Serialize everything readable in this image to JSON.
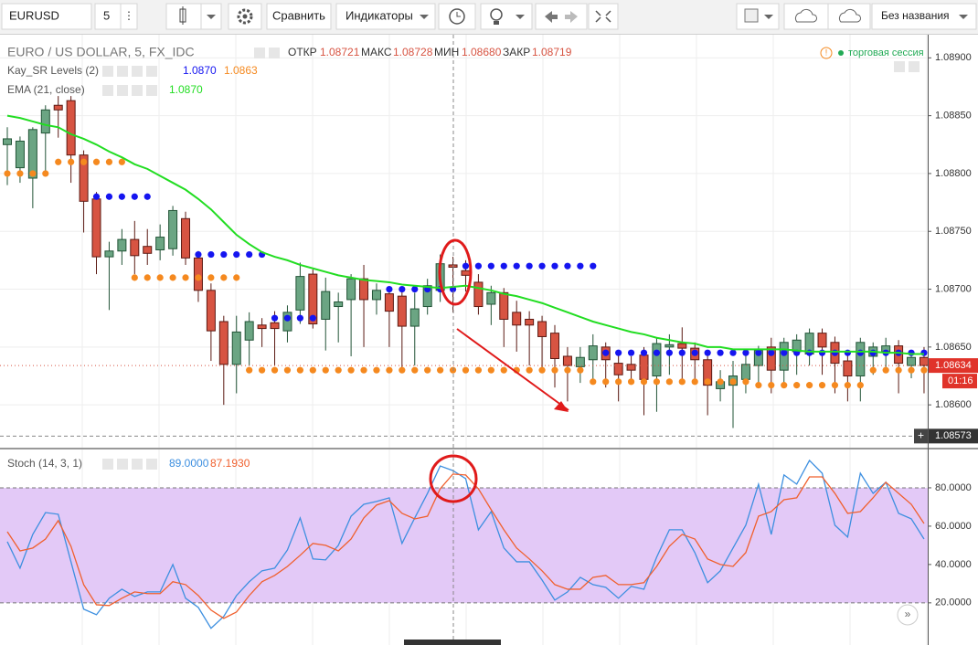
{
  "toolbar": {
    "symbol": "EURUSD",
    "interval": "5",
    "compare": "Сравнить",
    "indicators": "Индикаторы",
    "layout_name": "Без названия"
  },
  "chart_data": [
    {
      "type": "candlestick",
      "title": "EURO / US DOLLAR, 5, FX_IDC",
      "readout": {
        "labels": [
          "ОТКР",
          "МАКС",
          "МИН",
          "ЗАКР"
        ],
        "values": [
          "1.08721",
          "1.08728",
          "1.08680",
          "1.08719"
        ]
      },
      "session": "торговая сессия",
      "up_color": "#6ba583",
      "down_color": "#d75442",
      "open": [
        1.08825,
        1.08805,
        1.08796,
        1.08835,
        1.08859,
        1.08863,
        1.08816,
        1.08778,
        1.08728,
        1.08733,
        1.08743,
        1.08737,
        1.08734,
        1.08735,
        1.08761,
        1.08727,
        1.08699,
        1.08672,
        1.08635,
        1.08656,
        1.08669,
        1.08671,
        1.08664,
        1.08682,
        1.08713,
        1.08674,
        1.08685,
        1.08691,
        1.08709,
        1.08691,
        1.08696,
        1.08694,
        1.08668,
        1.08685,
        1.08699,
        1.08721,
        1.08716,
        1.08706,
        1.08687,
        1.08697,
        1.0868,
        1.08674,
        1.08672,
        1.08662,
        1.08642,
        1.08633,
        1.08639,
        1.0865,
        1.08636,
        1.08635,
        1.08643,
        1.08625,
        1.0865,
        1.08653,
        1.08649,
        1.08639,
        1.08614,
        1.08617,
        1.08622,
        1.08634,
        1.0865,
        1.0863,
        1.08646,
        1.08644,
        1.08662,
        1.08654,
        1.08638,
        1.08625,
        1.08642,
        1.08646,
        1.08651,
        1.08634,
        1.08641
      ],
      "high": [
        1.0884,
        1.08832,
        1.0884,
        1.08859,
        1.08867,
        1.08867,
        1.0882,
        1.08784,
        1.08741,
        1.08752,
        1.08759,
        1.08752,
        1.08756,
        1.08772,
        1.08767,
        1.08733,
        1.08705,
        1.08677,
        1.08677,
        1.0868,
        1.08675,
        1.08681,
        1.08686,
        1.08723,
        1.08717,
        1.0871,
        1.08697,
        1.08713,
        1.08721,
        1.08705,
        1.08701,
        1.08699,
        1.08697,
        1.08709,
        1.0873,
        1.08728,
        1.08725,
        1.08713,
        1.08703,
        1.08701,
        1.0869,
        1.08681,
        1.08677,
        1.08669,
        1.0865,
        1.0865,
        1.08661,
        1.08654,
        1.08646,
        1.08642,
        1.0865,
        1.08658,
        1.08661,
        1.08667,
        1.08654,
        1.08646,
        1.0863,
        1.08638,
        1.08646,
        1.08651,
        1.08658,
        1.08658,
        1.08661,
        1.08666,
        1.08666,
        1.08659,
        1.08646,
        1.08658,
        1.08654,
        1.08658,
        1.08656,
        1.08646,
        1.0865
      ],
      "low": [
        1.0879,
        1.08792,
        1.0877,
        1.088,
        1.08831,
        1.08792,
        1.08749,
        1.08713,
        1.08682,
        1.08721,
        1.08713,
        1.08721,
        1.08725,
        1.08729,
        1.08721,
        1.08689,
        1.08638,
        1.086,
        1.0861,
        1.08634,
        1.0865,
        1.08634,
        1.08654,
        1.0867,
        1.08666,
        1.08647,
        1.08654,
        1.08642,
        1.0865,
        1.08678,
        1.0865,
        1.08631,
        1.08634,
        1.08678,
        1.08689,
        1.0868,
        1.08698,
        1.08678,
        1.08669,
        1.0865,
        1.08646,
        1.08634,
        1.08631,
        1.08615,
        1.08603,
        1.08619,
        1.08619,
        1.08615,
        1.08603,
        1.08619,
        1.08591,
        1.08594,
        1.08626,
        1.08619,
        1.08619,
        1.08591,
        1.08603,
        1.0858,
        1.0861,
        1.08615,
        1.0861,
        1.08619,
        1.08626,
        1.08634,
        1.08626,
        1.0861,
        1.08603,
        1.08603,
        1.08626,
        1.0863,
        1.0861,
        1.08623,
        1.0861
      ],
      "close": [
        1.0883,
        1.08828,
        1.08838,
        1.08855,
        1.08855,
        1.08816,
        1.08776,
        1.08728,
        1.08733,
        1.08743,
        1.08729,
        1.08731,
        1.08745,
        1.08768,
        1.08727,
        1.08699,
        1.08664,
        1.08635,
        1.08663,
        1.08672,
        1.08666,
        1.08666,
        1.0868,
        1.08711,
        1.0867,
        1.08698,
        1.08689,
        1.08709,
        1.08691,
        1.08699,
        1.08681,
        1.08668,
        1.08683,
        1.08703,
        1.08722,
        1.08719,
        1.08712,
        1.08685,
        1.08697,
        1.08674,
        1.08669,
        1.08669,
        1.08659,
        1.0864,
        1.08634,
        1.08641,
        1.08651,
        1.08639,
        1.08626,
        1.0863,
        1.08622,
        1.08653,
        1.08652,
        1.08649,
        1.08639,
        1.08617,
        1.0862,
        1.08625,
        1.08635,
        1.08647,
        1.0863,
        1.08654,
        1.08656,
        1.08662,
        1.0865,
        1.08636,
        1.08625,
        1.08654,
        1.0865,
        1.08651,
        1.08636,
        1.08641,
        1.08634
      ],
      "indicators": [
        {
          "name": "Kay_SR Levels (2)",
          "series": [
            {
              "color": "#1515f0",
              "style": "dots",
              "readout": "1.0870",
              "values": [
                null,
                null,
                null,
                null,
                null,
                null,
                null,
                1.0878,
                1.0878,
                1.0878,
                1.0878,
                1.0878,
                null,
                null,
                null,
                1.0873,
                1.0873,
                1.0873,
                1.0873,
                1.0873,
                1.0873,
                1.08675,
                1.08675,
                1.08675,
                1.08675,
                null,
                null,
                null,
                null,
                null,
                1.087,
                1.087,
                1.087,
                1.087,
                1.087,
                1.087,
                1.0872,
                1.0872,
                1.0872,
                1.0872,
                1.0872,
                1.0872,
                1.0872,
                1.0872,
                1.0872,
                1.0872,
                1.0872,
                1.08645,
                1.08645,
                1.08645,
                1.08645,
                1.08645,
                1.08645,
                1.08645,
                1.08645,
                1.08645,
                1.08645,
                1.08645,
                1.08645,
                1.08645,
                1.08645,
                1.08645,
                1.08645,
                1.08645,
                1.08645,
                1.08645,
                1.08645,
                1.08645,
                1.08645,
                1.08645,
                1.08645,
                1.08645,
                1.08645
              ]
            },
            {
              "color": "#f5891f",
              "style": "dots",
              "readout": "1.0863",
              "values": [
                1.088,
                1.088,
                1.088,
                1.088,
                1.0881,
                1.0881,
                1.0881,
                1.0881,
                1.0881,
                1.0881,
                1.0871,
                1.0871,
                1.0871,
                1.0871,
                1.0871,
                1.0871,
                1.0871,
                1.0871,
                1.0871,
                1.0863,
                1.0863,
                1.0863,
                1.0863,
                1.0863,
                1.0863,
                1.0863,
                1.0863,
                1.0863,
                1.0863,
                1.0863,
                1.0863,
                1.0863,
                1.0863,
                1.0863,
                1.0863,
                1.0863,
                1.0863,
                1.0863,
                1.0863,
                1.0863,
                1.0863,
                1.0863,
                1.0863,
                1.0863,
                1.0863,
                1.0863,
                1.0862,
                1.0862,
                1.0862,
                1.0862,
                1.0862,
                1.0862,
                1.0862,
                1.0862,
                1.0862,
                1.0862,
                1.0862,
                1.0862,
                1.0862,
                1.08617,
                1.08617,
                1.08617,
                1.08617,
                1.08617,
                1.08617,
                1.08617,
                1.08617,
                1.08617,
                1.0863,
                1.0863,
                1.0863,
                1.0863,
                1.0863
              ]
            }
          ]
        },
        {
          "name": "EMA (21, close)",
          "series": [
            {
              "color": "#22dd22",
              "style": "line",
              "readout": "1.0870",
              "values": [
                1.0885,
                1.08848,
                1.08845,
                1.08842,
                1.0884,
                1.08834,
                1.0883,
                1.08825,
                1.08819,
                1.08814,
                1.08808,
                1.08804,
                1.08798,
                1.08792,
                1.08786,
                1.08778,
                1.08769,
                1.08758,
                1.08747,
                1.08739,
                1.08732,
                1.08728,
                1.08725,
                1.08721,
                1.08718,
                1.08715,
                1.08712,
                1.0871,
                1.08708,
                1.08707,
                1.08706,
                1.08704,
                1.08703,
                1.08702,
                1.08701,
                1.08702,
                1.08703,
                1.08701,
                1.08699,
                1.08696,
                1.08694,
                1.08691,
                1.08688,
                1.08684,
                1.0868,
                1.08676,
                1.08672,
                1.08669,
                1.08666,
                1.08663,
                1.08661,
                1.08658,
                1.08656,
                1.08654,
                1.08653,
                1.0865,
                1.0865,
                1.08648,
                1.08648,
                1.08648,
                1.08648,
                1.08648,
                1.08647,
                1.08646,
                1.08646,
                1.08646,
                1.08646,
                1.08646,
                1.08646,
                1.08645,
                1.08645,
                1.08644,
                1.08644
              ]
            }
          ]
        }
      ],
      "ylim": [
        1.08563,
        1.0892
      ],
      "yticks": [
        {
          "value": 1.086,
          "label": "1.08600"
        },
        {
          "value": 1.0865,
          "label": "1.08650"
        },
        {
          "value": 1.087,
          "label": "1.08700"
        },
        {
          "value": 1.0875,
          "label": "1.08750"
        },
        {
          "value": 1.088,
          "label": "1.08800"
        },
        {
          "value": 1.0885,
          "label": "1.08850"
        },
        {
          "value": 1.089,
          "label": "1.08900"
        }
      ],
      "grid": true,
      "last_price_label": "1.08634",
      "countdown": "01:16",
      "crosshair": {
        "value": 1.08573,
        "label": "1.08573"
      }
    },
    {
      "type": "line",
      "title": "Stoch (14, 3, 1)",
      "series": [
        {
          "color": "#3d8fe0",
          "readout": "89.0000",
          "values": [
            51.9,
            38.1,
            55.7,
            67.1,
            66.2,
            41.4,
            16.7,
            13.8,
            22.4,
            27.1,
            23.3,
            25.7,
            25.7,
            40.0,
            22.4,
            17.6,
            6.7,
            12.9,
            23.8,
            31.0,
            36.7,
            38.1,
            47.6,
            64.3,
            42.9,
            42.4,
            50.0,
            65.2,
            71.4,
            72.9,
            74.8,
            51.0,
            64.3,
            77.1,
            91.4,
            89,
            84.8,
            58.1,
            67.6,
            48.6,
            41.4,
            41.4,
            31.9,
            21.4,
            25.7,
            33.3,
            29.5,
            28.1,
            22.4,
            28.6,
            27.1,
            43.8,
            58.1,
            58.1,
            46.2,
            30.5,
            36.7,
            48.6,
            60.5,
            81.9,
            55.7,
            86.7,
            81.9,
            94.3,
            87.6,
            60.5,
            54.3,
            87.6,
            77.1,
            82.9,
            66.7,
            63.8,
            53.3
          ]
        },
        {
          "color": "#f0602e",
          "readout": "87.1930",
          "values": [
            57.1,
            47.1,
            48.6,
            53.3,
            62.9,
            49.5,
            29.5,
            19.0,
            18.6,
            22.4,
            25.7,
            24.8,
            24.8,
            31.0,
            29.5,
            23.8,
            16.2,
            11.9,
            15.2,
            23.8,
            31.0,
            34.3,
            39.0,
            44.8,
            51.0,
            50.0,
            47.1,
            53.3,
            64.3,
            71.0,
            73.3,
            66.7,
            63.8,
            65.2,
            79.5,
            87.193,
            86.7,
            79.5,
            68.6,
            58.1,
            48.6,
            42.9,
            36.7,
            29.5,
            27.1,
            27.1,
            33.3,
            34.3,
            29.5,
            29.5,
            30.5,
            39.0,
            49.5,
            55.7,
            53.3,
            42.9,
            40.0,
            39.0,
            46.2,
            65.2,
            67.6,
            73.8,
            74.8,
            85.7,
            85.7,
            77.1,
            66.7,
            67.6,
            74.8,
            82.9,
            77.1,
            71.4,
            61.4
          ]
        }
      ],
      "band": [
        20,
        80
      ],
      "band_color": "#e3c9f7",
      "ylim": [
        -2,
        100
      ],
      "yticks": [
        {
          "value": 20,
          "label": "20.0000"
        },
        {
          "value": 40,
          "label": "40.0000"
        },
        {
          "value": 60,
          "label": "60.0000"
        },
        {
          "value": 80,
          "label": "80.0000"
        }
      ],
      "grid": false
    }
  ]
}
